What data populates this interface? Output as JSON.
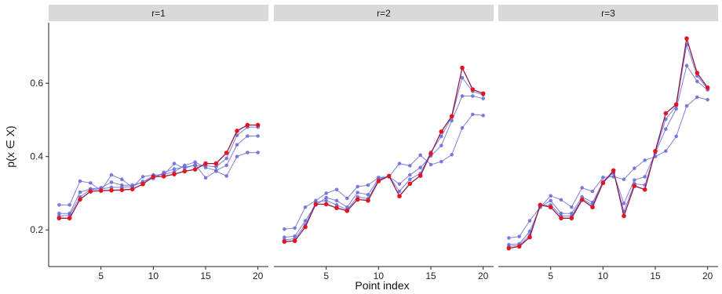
{
  "chart_data": {
    "type": "line",
    "xlabel": "Point index",
    "ylabel": "p(x ∈ X)",
    "ylim": [
      0.1,
      0.765
    ],
    "xlim": [
      0,
      21
    ],
    "x_ticks": [
      5,
      10,
      15,
      20
    ],
    "y_ticks": [
      0.2,
      0.4,
      0.6
    ],
    "grid": false,
    "colors": {
      "highlight": "#e8141b",
      "highlight_line": "#8b1a4a",
      "other": "#6a6ad8",
      "strip_bg": "#d9d9d9"
    },
    "panels": [
      {
        "title": "r=1",
        "highlight": [
          0.232,
          0.232,
          0.283,
          0.305,
          0.307,
          0.308,
          0.309,
          0.311,
          0.325,
          0.345,
          0.346,
          0.352,
          0.36,
          0.365,
          0.381,
          0.381,
          0.41,
          0.47,
          0.486,
          0.486
        ],
        "others": [
          [
            0.268,
            0.268,
            0.333,
            0.328,
            0.307,
            0.35,
            0.338,
            0.316,
            0.345,
            0.35,
            0.35,
            0.381,
            0.368,
            0.378,
            0.342,
            0.36,
            0.347,
            0.4,
            0.411,
            0.411
          ],
          [
            0.245,
            0.245,
            0.303,
            0.312,
            0.315,
            0.33,
            0.322,
            0.322,
            0.33,
            0.348,
            0.352,
            0.358,
            0.376,
            0.385,
            0.37,
            0.362,
            0.376,
            0.432,
            0.456,
            0.456
          ],
          [
            0.238,
            0.24,
            0.29,
            0.31,
            0.312,
            0.316,
            0.316,
            0.318,
            0.332,
            0.34,
            0.357,
            0.366,
            0.372,
            0.375,
            0.375,
            0.372,
            0.395,
            0.458,
            0.48,
            0.48
          ]
        ]
      },
      {
        "title": "r=2",
        "highlight": [
          0.168,
          0.17,
          0.208,
          0.27,
          0.27,
          0.26,
          0.252,
          0.283,
          0.28,
          0.333,
          0.347,
          0.292,
          0.326,
          0.348,
          0.408,
          0.468,
          0.51,
          0.642,
          0.583,
          0.572
        ],
        "others": [
          [
            0.202,
            0.205,
            0.262,
            0.28,
            0.3,
            0.31,
            0.286,
            0.318,
            0.322,
            0.343,
            0.345,
            0.381,
            0.375,
            0.404,
            0.378,
            0.386,
            0.405,
            0.478,
            0.515,
            0.512
          ],
          [
            0.18,
            0.183,
            0.225,
            0.268,
            0.288,
            0.28,
            0.262,
            0.302,
            0.296,
            0.34,
            0.345,
            0.325,
            0.35,
            0.37,
            0.402,
            0.43,
            0.498,
            0.565,
            0.565,
            0.558
          ],
          [
            0.173,
            0.176,
            0.214,
            0.275,
            0.28,
            0.268,
            0.255,
            0.29,
            0.285,
            0.336,
            0.347,
            0.305,
            0.338,
            0.354,
            0.412,
            0.455,
            0.508,
            0.615,
            0.578,
            0.568
          ]
        ]
      },
      {
        "title": "r=3",
        "highlight": [
          0.15,
          0.155,
          0.18,
          0.268,
          0.262,
          0.232,
          0.232,
          0.282,
          0.262,
          0.328,
          0.362,
          0.238,
          0.32,
          0.31,
          0.415,
          0.518,
          0.542,
          0.722,
          0.628,
          0.588
        ],
        "others": [
          [
            0.178,
            0.182,
            0.225,
            0.262,
            0.293,
            0.282,
            0.262,
            0.315,
            0.305,
            0.343,
            0.345,
            0.338,
            0.368,
            0.39,
            0.4,
            0.415,
            0.455,
            0.538,
            0.562,
            0.555
          ],
          [
            0.16,
            0.162,
            0.196,
            0.262,
            0.28,
            0.245,
            0.245,
            0.29,
            0.275,
            0.33,
            0.355,
            0.272,
            0.336,
            0.345,
            0.41,
            0.475,
            0.53,
            0.648,
            0.605,
            0.582
          ],
          [
            0.155,
            0.158,
            0.186,
            0.265,
            0.268,
            0.238,
            0.238,
            0.285,
            0.268,
            0.332,
            0.358,
            0.25,
            0.326,
            0.322,
            0.412,
            0.502,
            0.538,
            0.705,
            0.62,
            0.585
          ]
        ]
      }
    ]
  }
}
